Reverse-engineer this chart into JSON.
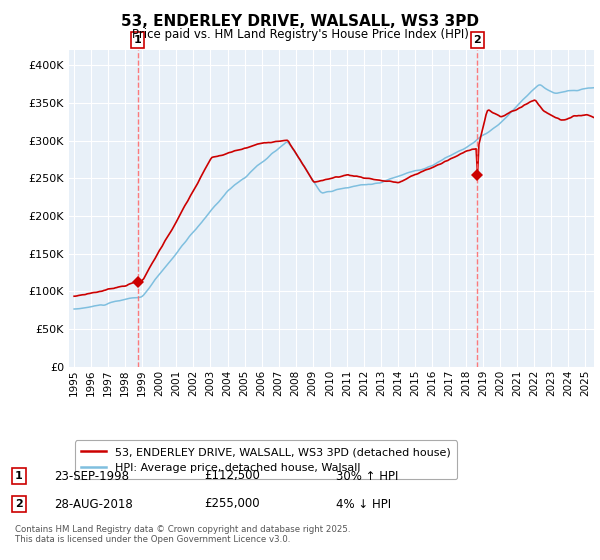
{
  "title": "53, ENDERLEY DRIVE, WALSALL, WS3 3PD",
  "subtitle": "Price paid vs. HM Land Registry's House Price Index (HPI)",
  "legend_line1": "53, ENDERLEY DRIVE, WALSALL, WS3 3PD (detached house)",
  "legend_line2": "HPI: Average price, detached house, Walsall",
  "annotation1_label": "1",
  "annotation1_date": "23-SEP-1998",
  "annotation1_price": "£112,500",
  "annotation1_hpi": "30% ↑ HPI",
  "annotation2_label": "2",
  "annotation2_date": "28-AUG-2018",
  "annotation2_price": "£255,000",
  "annotation2_hpi": "4% ↓ HPI",
  "footnote": "Contains HM Land Registry data © Crown copyright and database right 2025.\nThis data is licensed under the Open Government Licence v3.0.",
  "marker1_year": 1998.73,
  "marker1_value": 112500,
  "marker2_year": 2018.66,
  "marker2_value": 255000,
  "vline1_year": 1998.73,
  "vline2_year": 2018.66,
  "red_color": "#cc0000",
  "blue_color": "#7fbfdf",
  "vline_color": "#ff6666",
  "fig_bg": "#ffffff",
  "plot_bg": "#e8f0f8",
  "ylim": [
    0,
    420000
  ],
  "xlim_start": 1994.7,
  "xlim_end": 2025.5,
  "yticks": [
    0,
    50000,
    100000,
    150000,
    200000,
    250000,
    300000,
    350000,
    400000
  ],
  "xticks": [
    1995,
    1996,
    1997,
    1998,
    1999,
    2000,
    2001,
    2002,
    2003,
    2004,
    2005,
    2006,
    2007,
    2008,
    2009,
    2010,
    2011,
    2012,
    2013,
    2014,
    2015,
    2016,
    2017,
    2018,
    2019,
    2020,
    2021,
    2022,
    2023,
    2024,
    2025
  ]
}
